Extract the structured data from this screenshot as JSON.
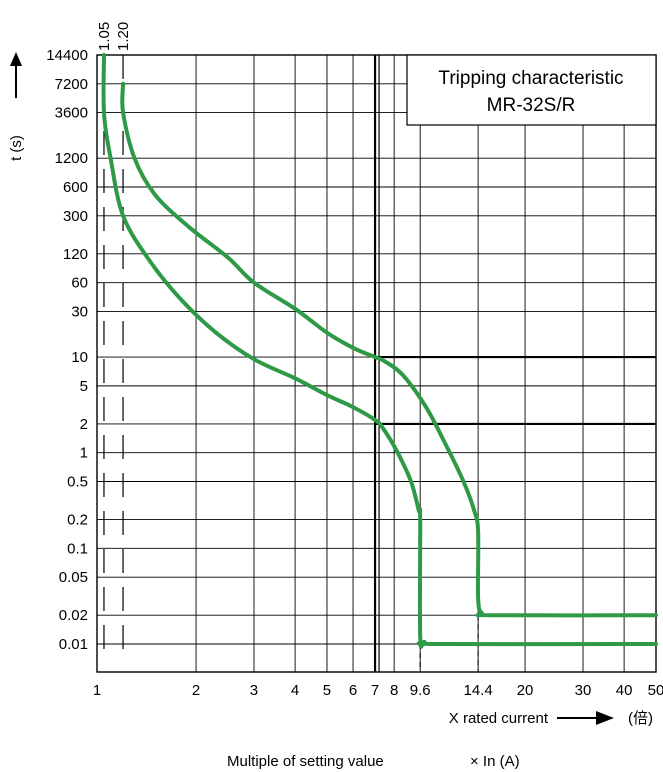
{
  "chart_data": {
    "type": "line",
    "title": "Tripping characteristic",
    "subtitle": "MR-32S/R",
    "xlabel": "X rated current",
    "xunit": "(倍)",
    "ylabel": "t (s)",
    "footer_label": "Multiple of setting value",
    "footer_unit": "× In (A)",
    "x_scale": "log",
    "y_scale": "log",
    "xlim": [
      1,
      50
    ],
    "ylim": [
      0.005,
      14400
    ],
    "grid": true,
    "x_ticks": [
      1,
      2,
      3,
      4,
      5,
      6,
      7,
      8,
      9.6,
      14.4,
      20,
      30,
      40,
      50
    ],
    "x_tick_labels": [
      "1",
      "2",
      "3",
      "4",
      "5",
      "6",
      "7",
      "8",
      "9.6",
      "14.4",
      "20",
      "30",
      "40",
      "50"
    ],
    "y_ticks": [
      14400,
      7200,
      3600,
      1200,
      600,
      300,
      120,
      60,
      30,
      10,
      5,
      2,
      1,
      0.5,
      0.2,
      0.1,
      0.05,
      0.02,
      0.01
    ],
    "y_tick_labels": [
      "14400",
      "7200",
      "3600",
      "1200",
      "600",
      "300",
      "120",
      "60",
      "30",
      "10",
      "5",
      "2",
      "1",
      "0.5",
      "0.2",
      "0.1",
      "0.05",
      "0.02",
      "0.01"
    ],
    "ref_lines_x": [
      {
        "value": 1.05,
        "label": "1.05"
      },
      {
        "value": 1.2,
        "label": "1.20"
      }
    ],
    "series": [
      {
        "color": "#2e9a46",
        "points": [
          [
            1.05,
            14400
          ],
          [
            1.05,
            3600
          ],
          [
            1.1,
            1200
          ],
          [
            1.2,
            300
          ],
          [
            1.45,
            100
          ],
          [
            1.8,
            40
          ],
          [
            2.3,
            18
          ],
          [
            3,
            9.5
          ],
          [
            4,
            6
          ],
          [
            5,
            4
          ],
          [
            6,
            3
          ],
          [
            7,
            2.2
          ],
          [
            7.4,
            1.8
          ],
          [
            8.2,
            1
          ],
          [
            9,
            0.5
          ],
          [
            9.5,
            0.25
          ],
          [
            9.6,
            0.2
          ],
          [
            9.6,
            0.012
          ],
          [
            9.9,
            0.0105
          ],
          [
            11,
            0.01
          ],
          [
            50,
            0.01
          ]
        ]
      },
      {
        "color": "#2e9a46",
        "points": [
          [
            1.2,
            7200
          ],
          [
            1.2,
            3600
          ],
          [
            1.3,
            1200
          ],
          [
            1.5,
            500
          ],
          [
            1.9,
            230
          ],
          [
            2.5,
            110
          ],
          [
            3,
            60
          ],
          [
            4,
            32
          ],
          [
            5,
            18
          ],
          [
            6,
            12.5
          ],
          [
            7,
            10
          ],
          [
            7.5,
            9
          ],
          [
            8.5,
            6.5
          ],
          [
            10,
            3
          ],
          [
            11.5,
            1.2
          ],
          [
            13,
            0.5
          ],
          [
            14,
            0.25
          ],
          [
            14.4,
            0.15
          ],
          [
            14.4,
            0.03
          ],
          [
            14.8,
            0.021
          ],
          [
            16,
            0.02
          ],
          [
            50,
            0.02
          ]
        ]
      }
    ]
  }
}
